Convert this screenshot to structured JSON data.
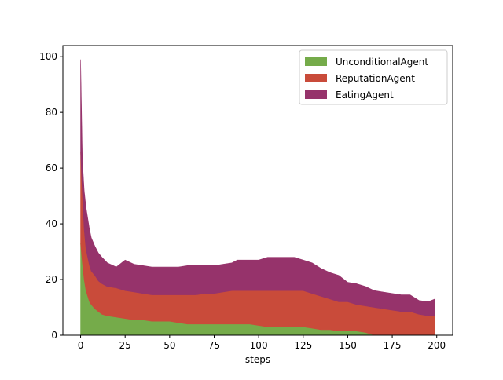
{
  "chart_data": {
    "type": "area",
    "stacked": true,
    "xlabel": "steps",
    "ylabel": "",
    "xlim": [
      -9.95,
      208.95
    ],
    "ylim": [
      0,
      104
    ],
    "xticks": [
      0,
      25,
      50,
      75,
      100,
      125,
      150,
      175,
      200
    ],
    "yticks": [
      0,
      20,
      40,
      60,
      80,
      100
    ],
    "x": [
      0,
      1,
      2,
      3,
      4,
      5,
      6,
      8,
      10,
      12,
      15,
      20,
      25,
      30,
      35,
      40,
      45,
      50,
      55,
      60,
      65,
      70,
      75,
      80,
      85,
      88,
      90,
      95,
      100,
      105,
      110,
      115,
      120,
      125,
      130,
      135,
      140,
      145,
      150,
      155,
      160,
      165,
      170,
      175,
      180,
      185,
      190,
      195,
      199
    ],
    "legend_position": "top-right",
    "grid": false,
    "series": [
      {
        "name": "UnconditionalAgent",
        "color": "#75ab4a",
        "values": [
          33,
          26,
          20,
          16,
          14,
          12,
          11,
          9.5,
          8.5,
          7.5,
          7,
          6.5,
          6,
          5.5,
          5.5,
          5,
          5,
          5,
          4.5,
          4,
          4,
          4,
          4,
          4,
          4,
          4,
          4,
          4,
          3.5,
          3,
          3,
          3,
          3,
          3,
          2.5,
          2,
          2,
          1.5,
          1.5,
          1.5,
          1,
          0,
          0,
          0,
          0,
          0,
          0,
          0,
          0
        ]
      },
      {
        "name": "ReputationAgent",
        "color": "#c94b3a",
        "values": [
          33,
          25,
          18,
          15,
          14,
          13,
          12,
          12,
          11,
          11,
          10.5,
          10.5,
          10,
          10,
          9.5,
          9.5,
          9.5,
          9.5,
          10,
          10.5,
          10.5,
          11,
          11,
          11.5,
          12,
          12,
          12,
          12,
          12.5,
          13,
          13,
          13,
          13,
          13,
          12.5,
          12,
          11,
          10.5,
          10.5,
          9.5,
          9.5,
          10,
          9.5,
          9,
          8.5,
          8.5,
          7.5,
          7,
          7
        ]
      },
      {
        "name": "EatingAgent",
        "color": "#96336b",
        "values": [
          33,
          12,
          14,
          15,
          14,
          13,
          12,
          10.5,
          10,
          9.5,
          8.5,
          7.5,
          11,
          10,
          10,
          10,
          10,
          10,
          10,
          10.5,
          10.5,
          10,
          10,
          10,
          10,
          11,
          11,
          11,
          11,
          12,
          12,
          12,
          12,
          11,
          11,
          10,
          9.5,
          9.5,
          7,
          7.5,
          7,
          6,
          6,
          6,
          6,
          6,
          5,
          5,
          6
        ]
      }
    ]
  }
}
